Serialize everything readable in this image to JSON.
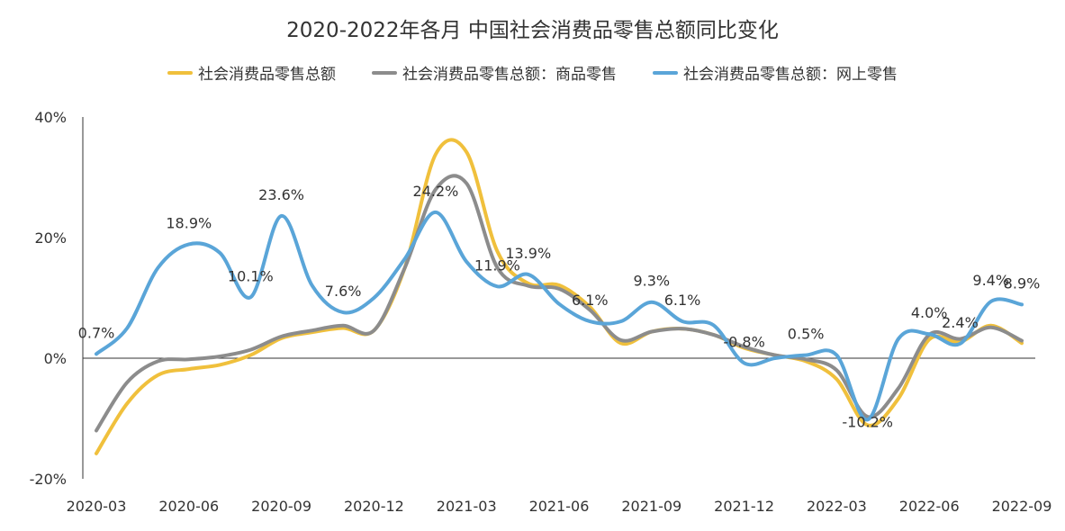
{
  "chart_data": {
    "type": "line",
    "title": "2020-2022年各月 中国社会消费品零售总额同比变化",
    "xlabel": "",
    "ylabel": "",
    "x": [
      "2020-03",
      "2020-04",
      "2020-05",
      "2020-06",
      "2020-07",
      "2020-08",
      "2020-09",
      "2020-10",
      "2020-11",
      "2020-12",
      "2021-01",
      "2021-02",
      "2021-03",
      "2021-04",
      "2021-05",
      "2021-06",
      "2021-07",
      "2021-08",
      "2021-09",
      "2021-10",
      "2021-11",
      "2021-12",
      "2022-01",
      "2022-02",
      "2022-03",
      "2022-04",
      "2022-05",
      "2022-06",
      "2022-07",
      "2022-08",
      "2022-09"
    ],
    "x_tick_labels": [
      "2020-03",
      "2020-06",
      "2020-09",
      "2020-12",
      "2021-03",
      "2021-06",
      "2021-09",
      "2021-12",
      "2022-03",
      "2022-06",
      "2022-09"
    ],
    "y_ticks": [
      -20,
      0,
      20,
      40
    ],
    "y_tick_labels": [
      "-20%",
      "0%",
      "20%",
      "40%"
    ],
    "ylim": [
      -20,
      40
    ],
    "legend_position": "top",
    "grid": false,
    "series": [
      {
        "name": "社会消费品零售总额",
        "color": "#f0c03c",
        "values": [
          -15.8,
          -7.5,
          -2.8,
          -1.8,
          -1.1,
          0.5,
          3.3,
          4.3,
          5.0,
          4.6,
          15.0,
          33.8,
          34.2,
          17.7,
          12.4,
          12.1,
          8.5,
          2.5,
          4.4,
          4.9,
          3.9,
          1.7,
          0.5,
          -0.5,
          -3.5,
          -11.1,
          -6.7,
          3.1,
          2.7,
          5.4,
          2.5
        ]
      },
      {
        "name": "社会消费品零售总额：商品零售",
        "color": "#8c8c8c",
        "values": [
          -12.0,
          -4.0,
          -0.5,
          -0.2,
          0.3,
          1.4,
          3.6,
          4.6,
          5.4,
          4.6,
          15.0,
          28.0,
          29.0,
          15.0,
          12.0,
          11.5,
          8.0,
          3.0,
          4.4,
          4.9,
          3.9,
          1.9,
          0.5,
          -0.2,
          -2.0,
          -9.7,
          -5.0,
          3.9,
          3.2,
          5.1,
          2.9
        ]
      },
      {
        "name": "社会消费品零售总额：网上零售",
        "color": "#5aa5d8",
        "values": [
          0.7,
          5.0,
          15.0,
          18.9,
          17.5,
          10.1,
          23.6,
          12.0,
          7.6,
          10.0,
          16.5,
          24.2,
          16.0,
          11.9,
          13.9,
          9.0,
          6.1,
          6.1,
          9.3,
          6.1,
          5.5,
          -0.8,
          0.0,
          0.5,
          0.5,
          -10.2,
          3.2,
          4.0,
          2.4,
          9.4,
          8.9
        ]
      }
    ],
    "data_labels": [
      {
        "text": "0.7%",
        "x": "2020-03",
        "y": 0.7
      },
      {
        "text": "18.9%",
        "x": "2020-06",
        "y": 18.9
      },
      {
        "text": "10.1%",
        "x": "2020-08",
        "y": 10.1
      },
      {
        "text": "23.6%",
        "x": "2020-09",
        "y": 23.6
      },
      {
        "text": "7.6%",
        "x": "2020-11",
        "y": 7.6
      },
      {
        "text": "24.2%",
        "x": "2021-02",
        "y": 24.2
      },
      {
        "text": "11.9%",
        "x": "2021-04",
        "y": 11.9
      },
      {
        "text": "13.9%",
        "x": "2021-05",
        "y": 13.9
      },
      {
        "text": "6.1%",
        "x": "2021-07",
        "y": 6.1
      },
      {
        "text": "9.3%",
        "x": "2021-09",
        "y": 9.3
      },
      {
        "text": "6.1%",
        "x": "2021-10",
        "y": 6.1
      },
      {
        "text": "-0.8%",
        "x": "2021-12",
        "y": -0.8
      },
      {
        "text": "0.5%",
        "x": "2022-02",
        "y": 0.5
      },
      {
        "text": "-10.2%",
        "x": "2022-04",
        "y": -10.2
      },
      {
        "text": "4.0%",
        "x": "2022-06",
        "y": 4.0
      },
      {
        "text": "2.4%",
        "x": "2022-07",
        "y": 2.4
      },
      {
        "text": "9.4%",
        "x": "2022-08",
        "y": 9.4
      },
      {
        "text": "8.9%",
        "x": "2022-09",
        "y": 8.9
      }
    ]
  }
}
